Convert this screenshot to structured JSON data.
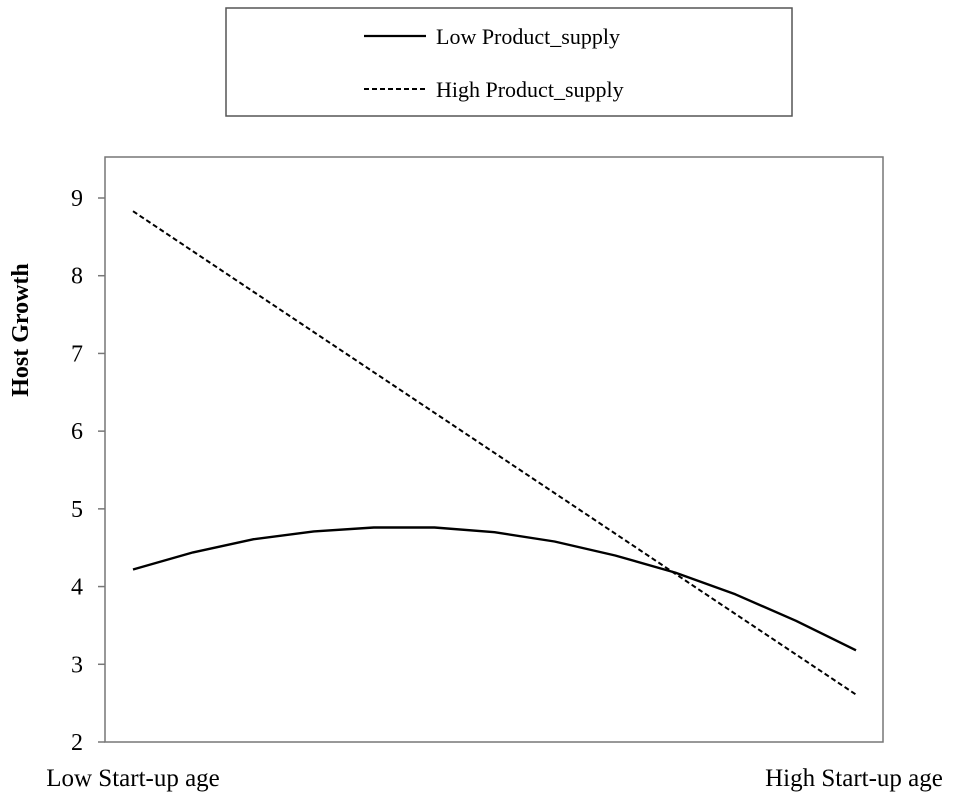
{
  "chart_data": {
    "type": "line",
    "categories": [
      "Low Start-up age",
      "High Start-up age"
    ],
    "xlabel": "",
    "ylabel": "Host Growth",
    "ylim": [
      2,
      9
    ],
    "yticks": [
      2,
      3,
      4,
      5,
      6,
      7,
      8,
      9
    ],
    "grid": false,
    "legend_position": "top",
    "series": [
      {
        "name": "Low Product_supply",
        "style": "solid",
        "color": "#000000",
        "x": [
          0,
          0.083,
          0.167,
          0.25,
          0.333,
          0.417,
          0.5,
          0.583,
          0.667,
          0.75,
          0.833,
          0.917,
          1
        ],
        "y": [
          4.22,
          4.44,
          4.61,
          4.71,
          4.76,
          4.76,
          4.7,
          4.58,
          4.4,
          4.18,
          3.9,
          3.56,
          3.18
        ]
      },
      {
        "name": "High Product_supply",
        "style": "dashed",
        "color": "#000000",
        "x": [
          0,
          1
        ],
        "y": [
          8.83,
          2.61
        ]
      }
    ]
  }
}
